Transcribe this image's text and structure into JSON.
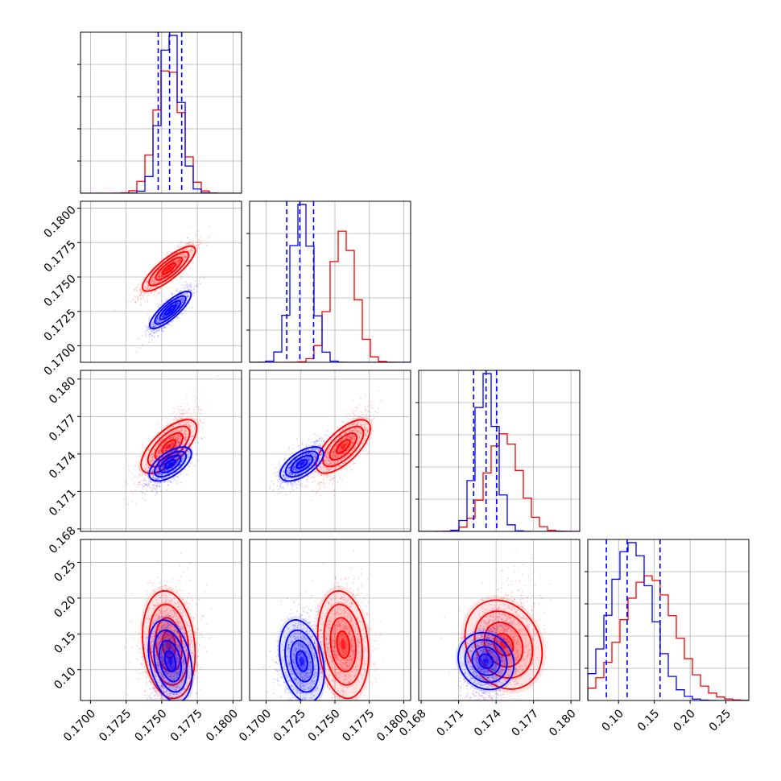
{
  "chart_data": {
    "type": "corner",
    "parameters": 4,
    "grid": true,
    "series": [
      {
        "color": "#ff0000",
        "parameter_means": [
          0.1755,
          0.1756,
          0.1746,
          0.135
        ],
        "parameter_sds": [
          0.0009,
          0.0009,
          0.0013,
          0.038
        ],
        "correlations": {
          "1-0": 0.85,
          "2-0": 0.75,
          "2-1": 0.75,
          "3-0": 0.05,
          "3-1": 0.05,
          "3-2": 0.3
        }
      },
      {
        "color": "#0000ff",
        "parameter_means": [
          0.1756,
          0.1726,
          0.1732,
          0.112
        ],
        "parameter_sds": [
          0.0007,
          0.00075,
          0.0008,
          0.03
        ],
        "correlations": {
          "1-0": 0.85,
          "2-0": 0.7,
          "2-1": 0.7,
          "3-0": 0.1,
          "3-1": 0.1,
          "3-2": 0.4
        }
      }
    ],
    "quantile_color": "#0000ff",
    "quantiles": [
      [
        0.17475,
        0.17555,
        0.1764
      ],
      [
        0.1715,
        0.17245,
        0.17345
      ],
      [
        0.1722,
        0.1732,
        0.17405
      ],
      [
        0.083,
        0.112,
        0.158
      ]
    ],
    "axes": [
      {
        "range": [
          0.1693,
          0.1806
        ],
        "ticks": [
          0.17,
          0.1725,
          0.175,
          0.1775,
          0.18
        ],
        "tick_labels": [
          "0.1700",
          "0.1725",
          "0.1750",
          "0.1775",
          "0.1800"
        ]
      },
      {
        "range": [
          0.1688,
          0.1805
        ],
        "ticks": [
          0.17,
          0.1725,
          0.175,
          0.1775,
          0.18
        ],
        "tick_labels": [
          "0.1700",
          "0.1725",
          "0.1750",
          "0.1775",
          "0.1800"
        ]
      },
      {
        "range": [
          0.1678,
          0.1807
        ],
        "ticks": [
          0.168,
          0.171,
          0.174,
          0.177,
          0.18
        ],
        "tick_labels": [
          "0.168",
          "0.171",
          "0.174",
          "0.177",
          "0.180"
        ]
      },
      {
        "range": [
          0.057,
          0.282
        ],
        "ticks": [
          0.1,
          0.15,
          0.2,
          0.25
        ],
        "tick_labels": [
          "0.10",
          "0.15",
          "0.20",
          "0.25"
        ]
      }
    ]
  }
}
